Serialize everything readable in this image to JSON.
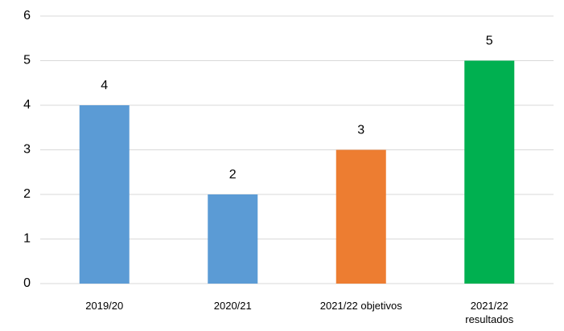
{
  "chart_data": {
    "type": "bar",
    "categories": [
      "2019/20",
      "2020/21",
      "2021/22 objetivos",
      "2021/22\nresultados"
    ],
    "values": [
      4,
      2,
      3,
      5
    ],
    "colors": [
      "#5b9bd5",
      "#5b9bd5",
      "#ed7d31",
      "#00b050"
    ],
    "ylim": [
      0,
      6
    ],
    "yticks": [
      0,
      1,
      2,
      3,
      4,
      5,
      6
    ],
    "grid": true
  }
}
